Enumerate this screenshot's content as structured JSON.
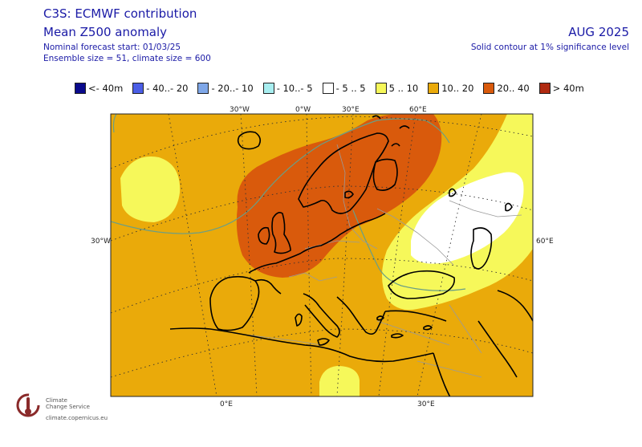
{
  "header": {
    "line1": "C3S: ECMWF contribution",
    "line2": "Mean Z500 anomaly",
    "line3": "Nominal forecast start: 01/03/25",
    "line4": "Ensemble size = 51, climate size = 600",
    "date": "AUG 2025",
    "note": "Solid contour at 1% significance level"
  },
  "legend": [
    {
      "label": "<- 40m",
      "color": "#0a0a8c"
    },
    {
      "label": "- 40..- 20",
      "color": "#4b5ee6"
    },
    {
      "label": "- 20..- 10",
      "color": "#7fa7e8"
    },
    {
      "label": "- 10..- 5",
      "color": "#a8eef0"
    },
    {
      "label": "- 5 .. 5",
      "color": "#ffffff"
    },
    {
      "label": "5 .. 10",
      "color": "#f6f85a"
    },
    {
      "label": "10.. 20",
      "color": "#eaaa0a"
    },
    {
      "label": "20.. 40",
      "color": "#d95a0c"
    },
    {
      "label": "> 40m",
      "color": "#b02a10"
    }
  ],
  "map": {
    "top_lon_labels": [
      "30°W",
      "0°W",
      "30°E",
      "60°E"
    ],
    "left_lat_label": "30°W",
    "right_label": "60°E",
    "bottom_labels": [
      "0°E",
      "30°E"
    ],
    "colors": {
      "coast": "#000000",
      "border": "#9a9a9a",
      "graticule": "#333333",
      "contour": "#6a9e86"
    }
  },
  "logo": {
    "name_line1": "Climate",
    "name_line2": "Change Service",
    "url": "climate.copernicus.eu",
    "color": "#8a2a2a"
  }
}
